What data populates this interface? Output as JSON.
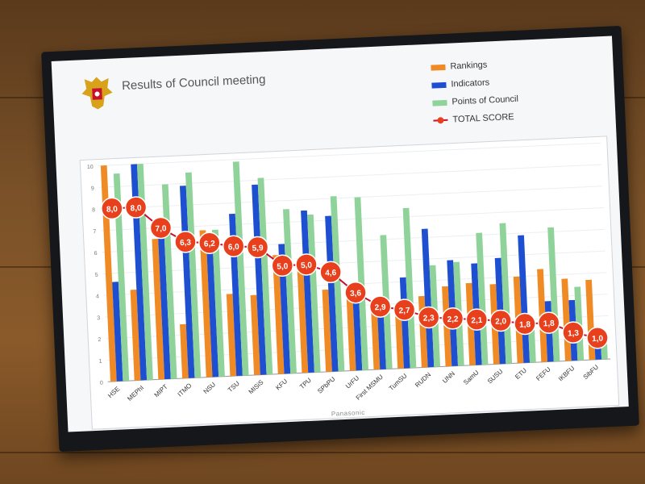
{
  "slide": {
    "title": "Results of Council meeting",
    "brand": "Panasonic"
  },
  "colors": {
    "rankings": "#f08a24",
    "indicators": "#1f4fd1",
    "points": "#8fd39a",
    "total": "#e8401c"
  },
  "chart_data": {
    "type": "bar",
    "title": "Results of Council meeting",
    "categories": [
      "HSE",
      "MEPhI",
      "MIPT",
      "ITMO",
      "NSU",
      "TSU",
      "MISiS",
      "KFU",
      "TPU",
      "SPbPU",
      "UrFU",
      "First MSMU",
      "TumSU",
      "RUDN",
      "UNN",
      "SamU",
      "SUSU",
      "ETU",
      "FEFU",
      "IKBFU",
      "SibFU"
    ],
    "ylim": [
      0,
      10
    ],
    "yticks": [
      "0",
      "1",
      "2",
      "3",
      "4",
      "5",
      "6",
      "7",
      "8",
      "9",
      "10"
    ],
    "legend_position": "top-right",
    "series": [
      {
        "name": "Rankings",
        "kind": "bar",
        "values": [
          10,
          4.2,
          6.5,
          2.5,
          6.8,
          3.8,
          3.7,
          5.5,
          5.3,
          3.8,
          3.4,
          2.8,
          2.8,
          3.3,
          3.7,
          3.8,
          3.7,
          4.0,
          4.3,
          3.8,
          3.7
        ]
      },
      {
        "name": "Indicators",
        "kind": "bar",
        "values": [
          4.6,
          10,
          6.8,
          8.9,
          6.5,
          7.5,
          8.8,
          6.0,
          7.5,
          7.2,
          3.2,
          2.7,
          4.2,
          6.4,
          4.9,
          4.7,
          4.9,
          5.9,
          2.8,
          2.8,
          1.0
        ]
      },
      {
        "name": "Points of Council",
        "kind": "bar",
        "values": [
          9.6,
          10,
          9.0,
          9.5,
          6.8,
          9.9,
          9.1,
          7.6,
          7.3,
          8.1,
          8.0,
          6.2,
          7.4,
          4.7,
          4.8,
          6.1,
          6.5,
          1.9,
          6.2,
          3.4,
          1.2
        ]
      },
      {
        "name": "TOTAL SCORE",
        "kind": "line",
        "values": [
          8.0,
          8.0,
          7.0,
          6.3,
          6.2,
          6.0,
          5.9,
          5.0,
          5.0,
          4.6,
          3.6,
          2.9,
          2.7,
          2.3,
          2.2,
          2.1,
          2.0,
          1.8,
          1.8,
          1.3,
          1.0
        ],
        "labels": [
          "8,0",
          "8,0",
          "7,0",
          "6,3",
          "6,2",
          "6,0",
          "5,9",
          "5,0",
          "5,0",
          "4,6",
          "3,6",
          "2,9",
          "2,7",
          "2,3",
          "2,2",
          "2,1",
          "2,0",
          "1,8",
          "1,8",
          "1,3",
          "1,0"
        ]
      }
    ]
  }
}
